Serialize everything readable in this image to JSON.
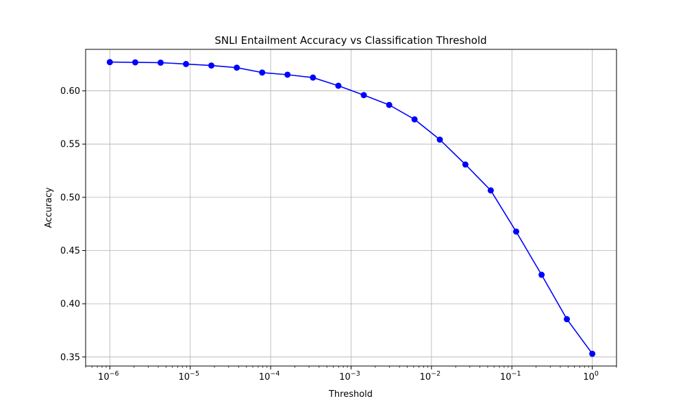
{
  "chart_data": {
    "type": "line",
    "title": "SNLI Entailment Accuracy vs Classification Threshold",
    "xlabel": "Threshold",
    "ylabel": "Accuracy",
    "xscale": "log",
    "xlim": [
      5e-07,
      2
    ],
    "ylim": [
      0.3415,
      0.639
    ],
    "grid": true,
    "legend": "none",
    "x_ticks": [
      {
        "value": 1e-06,
        "exponent": "−6"
      },
      {
        "value": 1e-05,
        "exponent": "−5"
      },
      {
        "value": 0.0001,
        "exponent": "−4"
      },
      {
        "value": 0.001,
        "exponent": "−3"
      },
      {
        "value": 0.01,
        "exponent": "−2"
      },
      {
        "value": 0.1,
        "exponent": "−1"
      },
      {
        "value": 1,
        "exponent": "0"
      }
    ],
    "y_ticks": [
      {
        "value": 0.35,
        "label": "0.35"
      },
      {
        "value": 0.4,
        "label": "0.40"
      },
      {
        "value": 0.45,
        "label": "0.45"
      },
      {
        "value": 0.5,
        "label": "0.50"
      },
      {
        "value": 0.55,
        "label": "0.55"
      },
      {
        "value": 0.6,
        "label": "0.60"
      }
    ],
    "series": [
      {
        "color": "#0000ff",
        "x": [
          1e-06,
          2.07e-06,
          4.28e-06,
          8.86e-06,
          1.83e-05,
          3.79e-05,
          7.85e-05,
          0.000162,
          0.000336,
          0.000695,
          0.00144,
          0.00298,
          0.00616,
          0.0127,
          0.0264,
          0.0546,
          0.113,
          0.234,
          0.483,
          1.0
        ],
        "y": [
          0.627,
          0.6268,
          0.6265,
          0.6252,
          0.6238,
          0.6218,
          0.6172,
          0.6152,
          0.6125,
          0.6048,
          0.596,
          0.5868,
          0.5732,
          0.5542,
          0.5308,
          0.5065,
          0.4678,
          0.4272,
          0.3855,
          0.353
        ]
      }
    ]
  }
}
